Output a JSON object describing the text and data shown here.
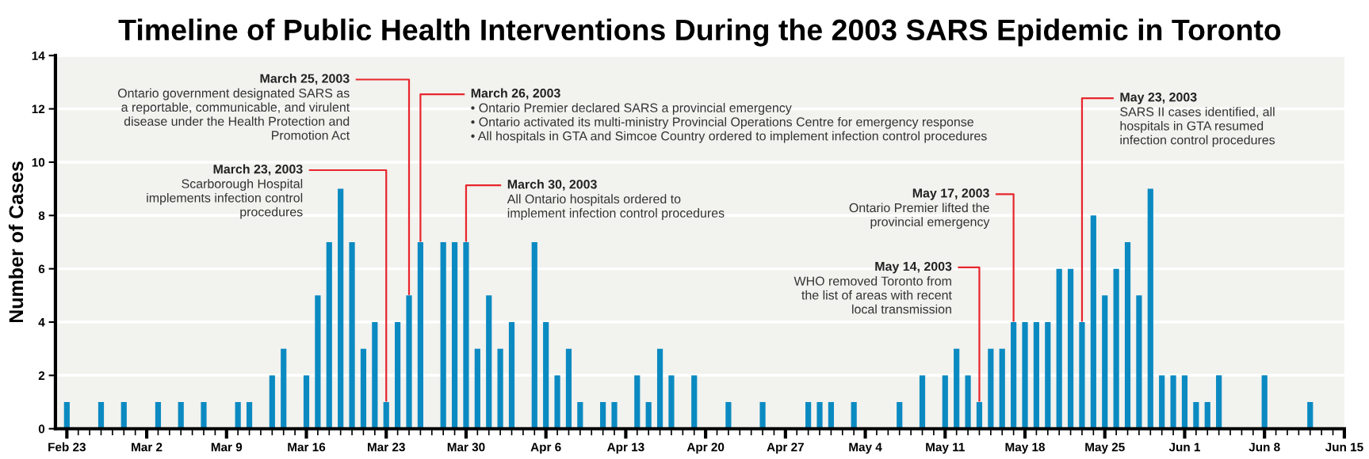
{
  "chart_data": {
    "type": "bar",
    "title": "Timeline of Public Health Interventions During the 2003 SARS Epidemic in Toronto",
    "ylabel": "Number of Cases",
    "x": [
      "2003-02-23",
      "2003-02-26",
      "2003-02-28",
      "2003-03-03",
      "2003-03-05",
      "2003-03-07",
      "2003-03-10",
      "2003-03-11",
      "2003-03-13",
      "2003-03-14",
      "2003-03-16",
      "2003-03-17",
      "2003-03-18",
      "2003-03-19",
      "2003-03-20",
      "2003-03-21",
      "2003-03-22",
      "2003-03-23",
      "2003-03-24",
      "2003-03-25",
      "2003-03-26",
      "2003-03-28",
      "2003-03-29",
      "2003-03-30",
      "2003-03-31",
      "2003-04-01",
      "2003-04-02",
      "2003-04-03",
      "2003-04-05",
      "2003-04-06",
      "2003-04-07",
      "2003-04-08",
      "2003-04-09",
      "2003-04-11",
      "2003-04-12",
      "2003-04-14",
      "2003-04-15",
      "2003-04-16",
      "2003-04-17",
      "2003-04-19",
      "2003-04-22",
      "2003-04-25",
      "2003-04-29",
      "2003-04-30",
      "2003-05-01",
      "2003-05-03",
      "2003-05-07",
      "2003-05-09",
      "2003-05-11",
      "2003-05-12",
      "2003-05-13",
      "2003-05-14",
      "2003-05-15",
      "2003-05-16",
      "2003-05-17",
      "2003-05-18",
      "2003-05-19",
      "2003-05-20",
      "2003-05-21",
      "2003-05-22",
      "2003-05-23",
      "2003-05-24",
      "2003-05-25",
      "2003-05-26",
      "2003-05-27",
      "2003-05-28",
      "2003-05-29",
      "2003-05-30",
      "2003-05-31",
      "2003-06-01",
      "2003-06-02",
      "2003-06-03",
      "2003-06-04",
      "2003-06-08",
      "2003-06-12"
    ],
    "values": [
      1,
      1,
      1,
      1,
      1,
      1,
      1,
      1,
      2,
      3,
      2,
      5,
      7,
      9,
      7,
      3,
      4,
      1,
      4,
      5,
      7,
      7,
      7,
      7,
      3,
      5,
      3,
      4,
      7,
      4,
      2,
      3,
      1,
      1,
      1,
      2,
      1,
      3,
      2,
      2,
      1,
      1,
      1,
      1,
      1,
      1,
      1,
      2,
      2,
      3,
      2,
      1,
      3,
      3,
      4,
      4,
      4,
      4,
      6,
      6,
      4,
      8,
      5,
      6,
      7,
      5,
      9,
      2,
      2,
      2,
      1,
      1,
      2,
      2,
      1
    ],
    "color": "#0b8ac2",
    "ylim": [
      0,
      14
    ],
    "yticks": [
      0,
      2,
      4,
      6,
      8,
      10,
      12,
      14
    ],
    "xlim": [
      "2003-02-22",
      "2003-06-15"
    ],
    "xticks": [
      {
        "value": "2003-02-23",
        "label": "Feb 23"
      },
      {
        "value": "2003-02-24",
        "label": null
      },
      {
        "value": "2003-02-25",
        "label": null
      },
      {
        "value": "2003-02-26",
        "label": null
      },
      {
        "value": "2003-02-27",
        "label": null
      },
      {
        "value": "2003-02-28",
        "label": null
      },
      {
        "value": "2003-03-01",
        "label": null
      },
      {
        "value": "2003-03-02",
        "label": "Mar 2"
      },
      {
        "value": "2003-03-03",
        "label": null
      },
      {
        "value": "2003-03-04",
        "label": null
      },
      {
        "value": "2003-03-05",
        "label": null
      },
      {
        "value": "2003-03-06",
        "label": null
      },
      {
        "value": "2003-03-07",
        "label": null
      },
      {
        "value": "2003-03-08",
        "label": null
      },
      {
        "value": "2003-03-09",
        "label": "Mar 9"
      },
      {
        "value": "2003-03-10",
        "label": null
      },
      {
        "value": "2003-03-11",
        "label": null
      },
      {
        "value": "2003-03-12",
        "label": null
      },
      {
        "value": "2003-03-13",
        "label": null
      },
      {
        "value": "2003-03-14",
        "label": null
      },
      {
        "value": "2003-03-15",
        "label": null
      },
      {
        "value": "2003-03-16",
        "label": "Mar 16"
      },
      {
        "value": "2003-03-17",
        "label": null
      },
      {
        "value": "2003-03-18",
        "label": null
      },
      {
        "value": "2003-03-19",
        "label": null
      },
      {
        "value": "2003-03-20",
        "label": null
      },
      {
        "value": "2003-03-21",
        "label": null
      },
      {
        "value": "2003-03-22",
        "label": null
      },
      {
        "value": "2003-03-23",
        "label": "Mar 23"
      },
      {
        "value": "2003-03-24",
        "label": null
      },
      {
        "value": "2003-03-25",
        "label": null
      },
      {
        "value": "2003-03-26",
        "label": null
      },
      {
        "value": "2003-03-27",
        "label": null
      },
      {
        "value": "2003-03-28",
        "label": null
      },
      {
        "value": "2003-03-29",
        "label": null
      },
      {
        "value": "2003-03-30",
        "label": "Mar 30"
      },
      {
        "value": "2003-03-31",
        "label": null
      },
      {
        "value": "2003-04-01",
        "label": null
      },
      {
        "value": "2003-04-02",
        "label": null
      },
      {
        "value": "2003-04-03",
        "label": null
      },
      {
        "value": "2003-04-04",
        "label": null
      },
      {
        "value": "2003-04-05",
        "label": null
      },
      {
        "value": "2003-04-06",
        "label": "Apr 6"
      },
      {
        "value": "2003-04-07",
        "label": null
      },
      {
        "value": "2003-04-08",
        "label": null
      },
      {
        "value": "2003-04-09",
        "label": null
      },
      {
        "value": "2003-04-10",
        "label": null
      },
      {
        "value": "2003-04-11",
        "label": null
      },
      {
        "value": "2003-04-12",
        "label": null
      },
      {
        "value": "2003-04-13",
        "label": "Apr 13"
      },
      {
        "value": "2003-04-14",
        "label": null
      },
      {
        "value": "2003-04-15",
        "label": null
      },
      {
        "value": "2003-04-16",
        "label": null
      },
      {
        "value": "2003-04-17",
        "label": null
      },
      {
        "value": "2003-04-18",
        "label": null
      },
      {
        "value": "2003-04-19",
        "label": null
      },
      {
        "value": "2003-04-20",
        "label": "Apr 20"
      },
      {
        "value": "2003-04-21",
        "label": null
      },
      {
        "value": "2003-04-22",
        "label": null
      },
      {
        "value": "2003-04-23",
        "label": null
      },
      {
        "value": "2003-04-24",
        "label": null
      },
      {
        "value": "2003-04-25",
        "label": null
      },
      {
        "value": "2003-04-26",
        "label": null
      },
      {
        "value": "2003-04-27",
        "label": "Apr 27"
      },
      {
        "value": "2003-04-28",
        "label": null
      },
      {
        "value": "2003-04-29",
        "label": null
      },
      {
        "value": "2003-04-30",
        "label": null
      },
      {
        "value": "2003-05-01",
        "label": null
      },
      {
        "value": "2003-05-02",
        "label": null
      },
      {
        "value": "2003-05-03",
        "label": null
      },
      {
        "value": "2003-05-04",
        "label": "May 4"
      },
      {
        "value": "2003-05-05",
        "label": null
      },
      {
        "value": "2003-05-06",
        "label": null
      },
      {
        "value": "2003-05-07",
        "label": null
      },
      {
        "value": "2003-05-08",
        "label": null
      },
      {
        "value": "2003-05-09",
        "label": null
      },
      {
        "value": "2003-05-10",
        "label": null
      },
      {
        "value": "2003-05-11",
        "label": "May 11"
      },
      {
        "value": "2003-05-12",
        "label": null
      },
      {
        "value": "2003-05-13",
        "label": null
      },
      {
        "value": "2003-05-14",
        "label": null
      },
      {
        "value": "2003-05-15",
        "label": null
      },
      {
        "value": "2003-05-16",
        "label": null
      },
      {
        "value": "2003-05-17",
        "label": null
      },
      {
        "value": "2003-05-18",
        "label": "May 18"
      },
      {
        "value": "2003-05-19",
        "label": null
      },
      {
        "value": "2003-05-20",
        "label": null
      },
      {
        "value": "2003-05-21",
        "label": null
      },
      {
        "value": "2003-05-22",
        "label": null
      },
      {
        "value": "2003-05-23",
        "label": null
      },
      {
        "value": "2003-05-24",
        "label": null
      },
      {
        "value": "2003-05-25",
        "label": "May 25"
      },
      {
        "value": "2003-05-26",
        "label": null
      },
      {
        "value": "2003-05-27",
        "label": null
      },
      {
        "value": "2003-05-28",
        "label": null
      },
      {
        "value": "2003-05-29",
        "label": null
      },
      {
        "value": "2003-05-30",
        "label": null
      },
      {
        "value": "2003-05-31",
        "label": null
      },
      {
        "value": "2003-06-01",
        "label": "Jun 1"
      },
      {
        "value": "2003-06-02",
        "label": null
      },
      {
        "value": "2003-06-03",
        "label": null
      },
      {
        "value": "2003-06-04",
        "label": null
      },
      {
        "value": "2003-06-05",
        "label": null
      },
      {
        "value": "2003-06-06",
        "label": null
      },
      {
        "value": "2003-06-07",
        "label": null
      },
      {
        "value": "2003-06-08",
        "label": "Jun 8"
      },
      {
        "value": "2003-06-09",
        "label": null
      },
      {
        "value": "2003-06-10",
        "label": null
      },
      {
        "value": "2003-06-11",
        "label": null
      },
      {
        "value": "2003-06-12",
        "label": null
      },
      {
        "value": "2003-06-13",
        "label": null
      },
      {
        "value": "2003-06-14",
        "label": null
      },
      {
        "value": "2003-06-15",
        "label": "Jun 15"
      }
    ],
    "grid": "y",
    "annotations": [
      {
        "text": "March 23, 2003\nScarborough Hospital\nimplements infection control\nprocedures",
        "x": "2003-03-23",
        "y": 1
      },
      {
        "text": "March 25, 2003\nOntario government designated SARS as\na reportable, communicable, and virulent\ndisease under the Health Protection and\nPromotion Act",
        "x": "2003-03-25",
        "y": 5
      },
      {
        "text": "March 26, 2003\n• Ontario Premier declared SARS a provincial emergency\n• Ontario activated its multi-ministry Provincial Operations Centre for emergency response\n• All hospitals in GTA and Simcoe Country ordered to implement infection control procedures",
        "x": "2003-03-26",
        "y": 7
      },
      {
        "text": "March 30, 2003\nAll Ontario hospitals ordered to\nimplement infection control procedures",
        "x": "2003-03-30",
        "y": 7
      },
      {
        "text": "May 14, 2003\nWHO removed Toronto from\nthe list of areas with recent\nlocal transmission",
        "x": "2003-05-14",
        "y": 1
      },
      {
        "text": "May 17, 2003\nOntario Premier lifted the\nprovincial emergency",
        "x": "2003-05-17",
        "y": 4
      },
      {
        "text": "May 23, 2003\nSARS II cases identified, all\nhospitals in GTA resumed\ninfection control procedures",
        "x": "2003-05-23",
        "y": 4
      }
    ]
  }
}
